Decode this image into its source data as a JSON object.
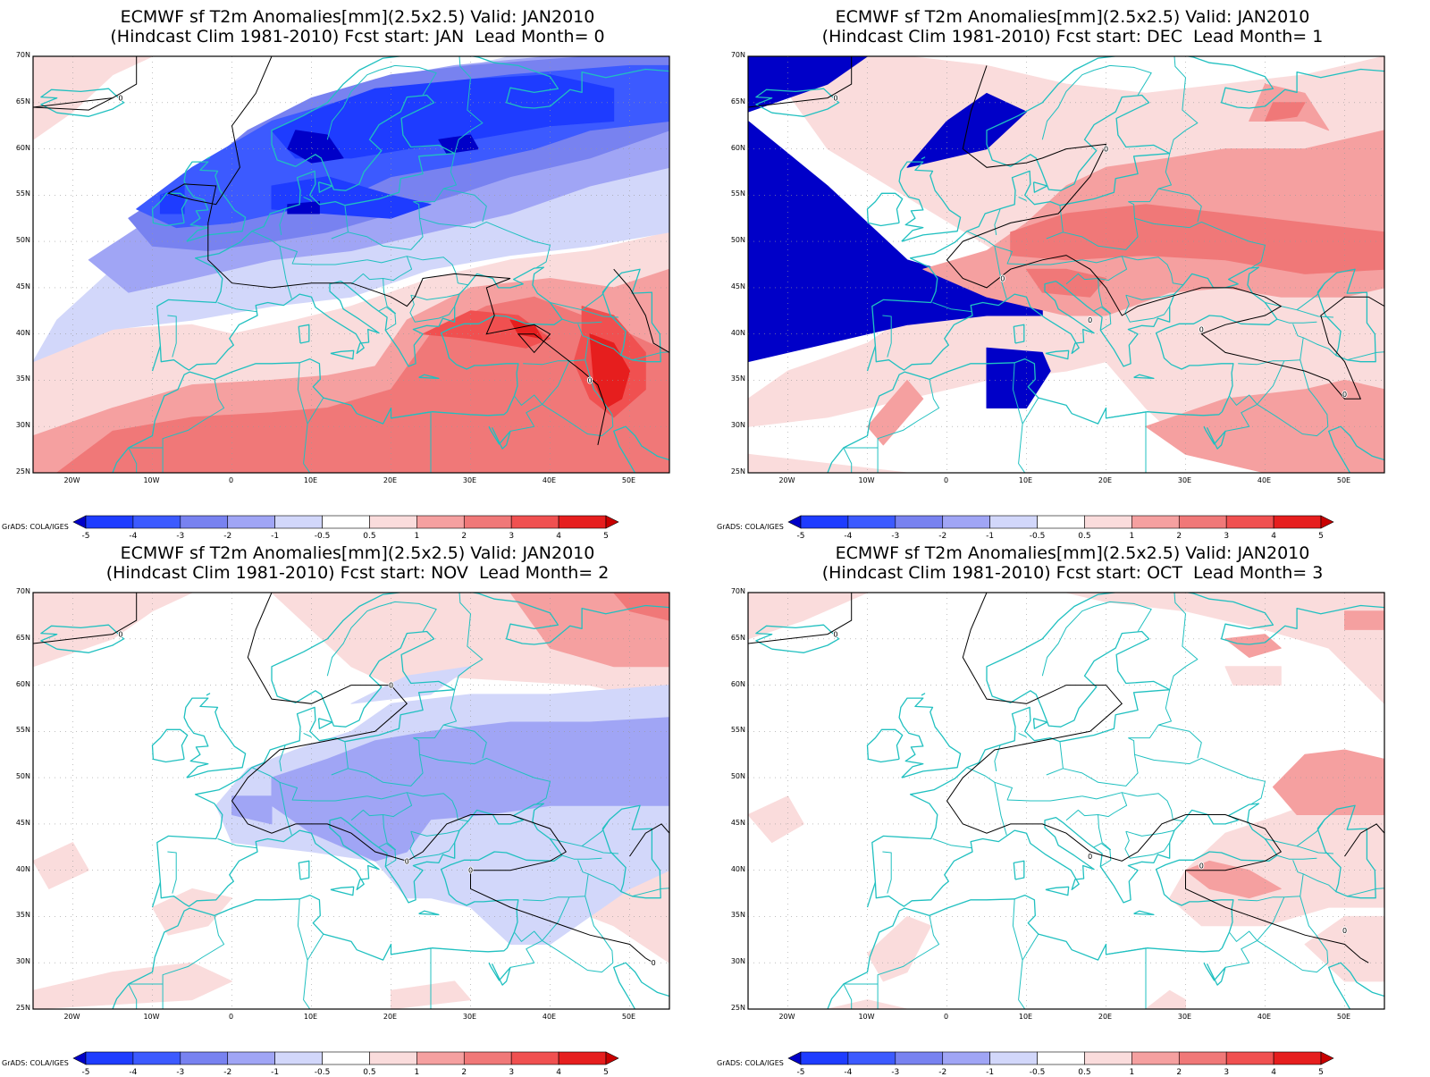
{
  "panels": [
    {
      "title_line1": "ECMWF sf T2m Anomalies[mm](2.5x2.5) Valid: JAN2010",
      "title_line2": "(Hindcast Clim 1981-2010) Fcst start: JAN  Lead Month= 0"
    },
    {
      "title_line1": "ECMWF sf T2m Anomalies[mm](2.5x2.5) Valid: JAN2010",
      "title_line2": "(Hindcast Clim 1981-2010) Fcst start: DEC  Lead Month= 1"
    },
    {
      "title_line1": "ECMWF sf T2m Anomalies[mm](2.5x2.5) Valid: JAN2010",
      "title_line2": "(Hindcast Clim 1981-2010) Fcst start: NOV  Lead Month= 2"
    },
    {
      "title_line1": "ECMWF sf T2m Anomalies[mm](2.5x2.5) Valid: JAN2010",
      "title_line2": "(Hindcast Clim 1981-2010) Fcst start: OCT  Lead Month= 3"
    }
  ],
  "lat_labels": [
    "70N",
    "65N",
    "60N",
    "55N",
    "50N",
    "45N",
    "40N",
    "35N",
    "30N",
    "25N"
  ],
  "lon_labels": [
    "20W",
    "10W",
    "0",
    "10E",
    "20E",
    "30E",
    "40E",
    "50E"
  ],
  "contour_label": "0",
  "credit": "GrADS: COLA/IGES",
  "colorbar": {
    "labels": [
      "-5",
      "-4",
      "-3",
      "-2",
      "-1",
      "-0.5",
      "0.5",
      "1",
      "2",
      "3",
      "4",
      "5"
    ],
    "colors": [
      "#0000c8",
      "#1e3cff",
      "#3c5aff",
      "#7882f0",
      "#a0a5f5",
      "#d2d7fa",
      "#ffffff",
      "#fadcdc",
      "#f5a0a0",
      "#f07878",
      "#f05050",
      "#e61e1e",
      "#c80000"
    ]
  }
}
